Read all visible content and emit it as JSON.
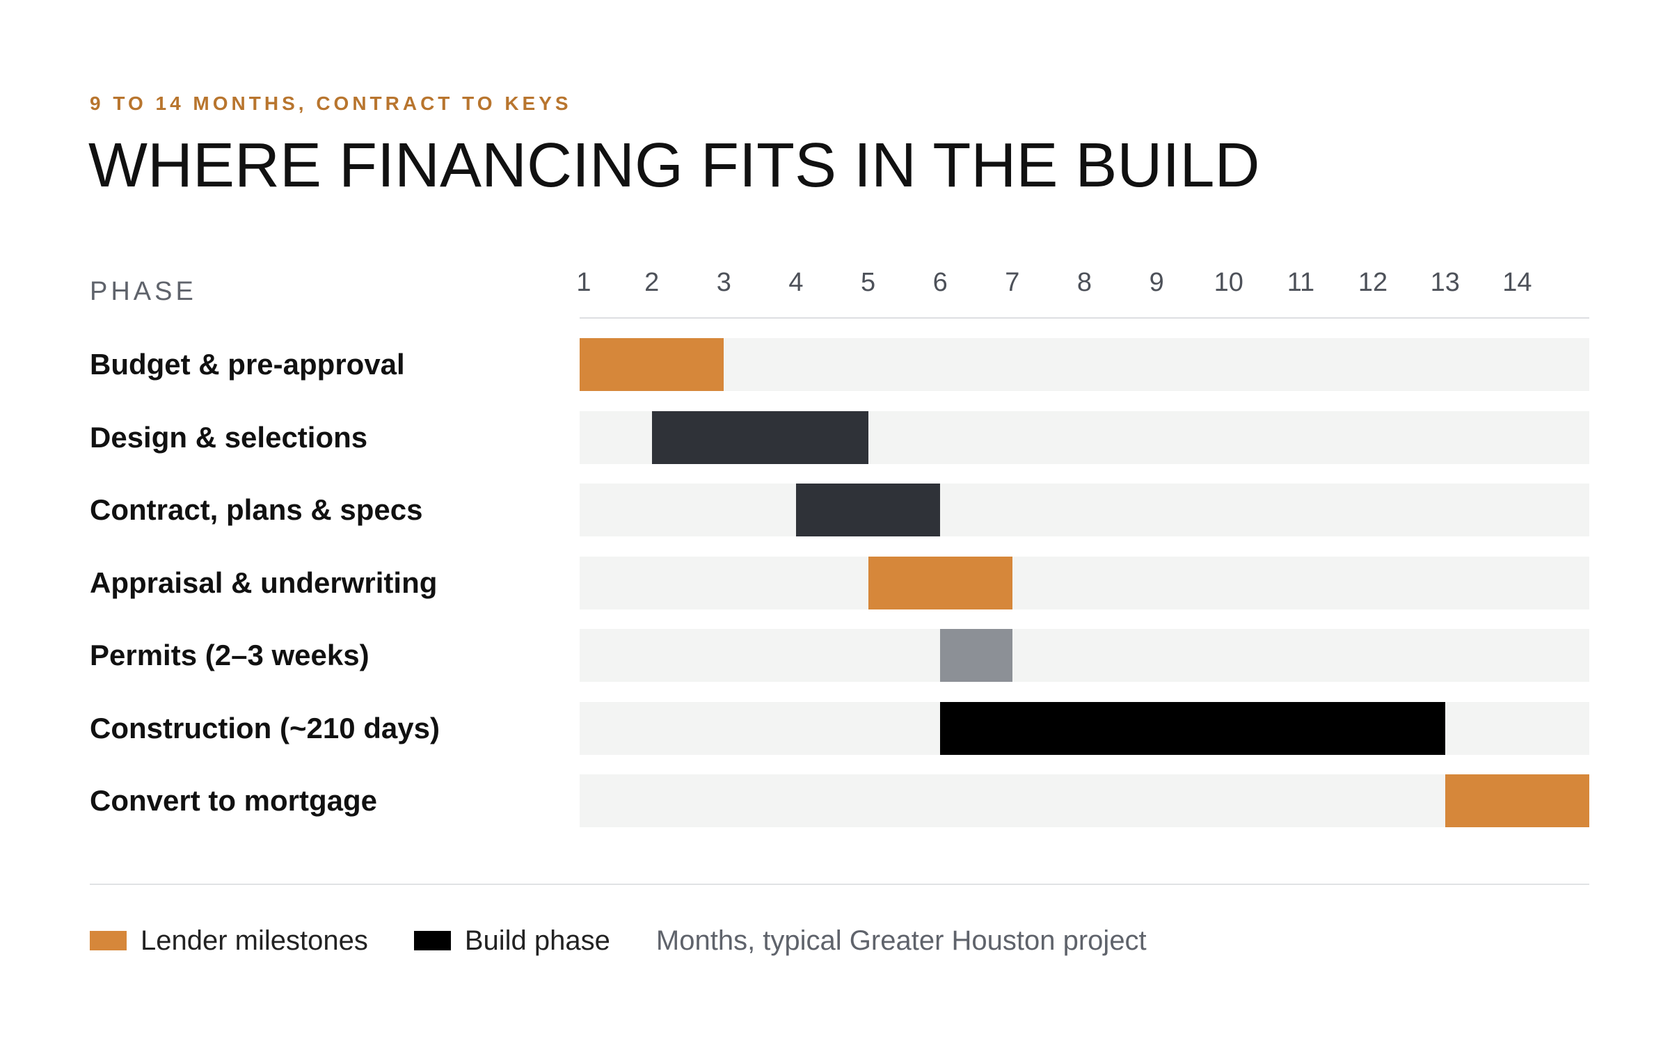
{
  "eyebrow": "9 TO 14 MONTHS, CONTRACT TO KEYS",
  "title": "WHERE FINANCING FITS IN THE BUILD",
  "colors": {
    "lender": "#d6873a",
    "build_dark": "#2f3238",
    "permits": "#8c9096",
    "construction": "#000000",
    "track": "#f3f4f3",
    "eyebrow": "#b8752e"
  },
  "chart_data": {
    "type": "gantt",
    "row_header": "PHASE",
    "x_ticks": [
      "1",
      "2",
      "3",
      "4",
      "5",
      "6",
      "7",
      "8",
      "9",
      "10",
      "11",
      "12",
      "13",
      "14"
    ],
    "xlim": [
      1,
      15
    ],
    "tasks": [
      {
        "label": "Budget & pre-approval",
        "start": 1,
        "end": 3,
        "group": "lender"
      },
      {
        "label": "Design & selections",
        "start": 2,
        "end": 5,
        "group": "build_dark"
      },
      {
        "label": "Contract, plans & specs",
        "start": 4,
        "end": 6,
        "group": "build_dark"
      },
      {
        "label": "Appraisal & underwriting",
        "start": 5,
        "end": 7,
        "group": "lender"
      },
      {
        "label": "Permits (2–3 weeks)",
        "start": 6,
        "end": 7,
        "group": "permits"
      },
      {
        "label": "Construction (~210 days)",
        "start": 6,
        "end": 13,
        "group": "construction"
      },
      {
        "label": "Convert to mortgage",
        "start": 13,
        "end": 15,
        "group": "lender"
      }
    ]
  },
  "legend": {
    "items": [
      {
        "label": "Lender milestones",
        "color": "#d6873a"
      },
      {
        "label": "Build phase",
        "color": "#000000"
      }
    ],
    "note": "Months, typical Greater Houston project"
  }
}
